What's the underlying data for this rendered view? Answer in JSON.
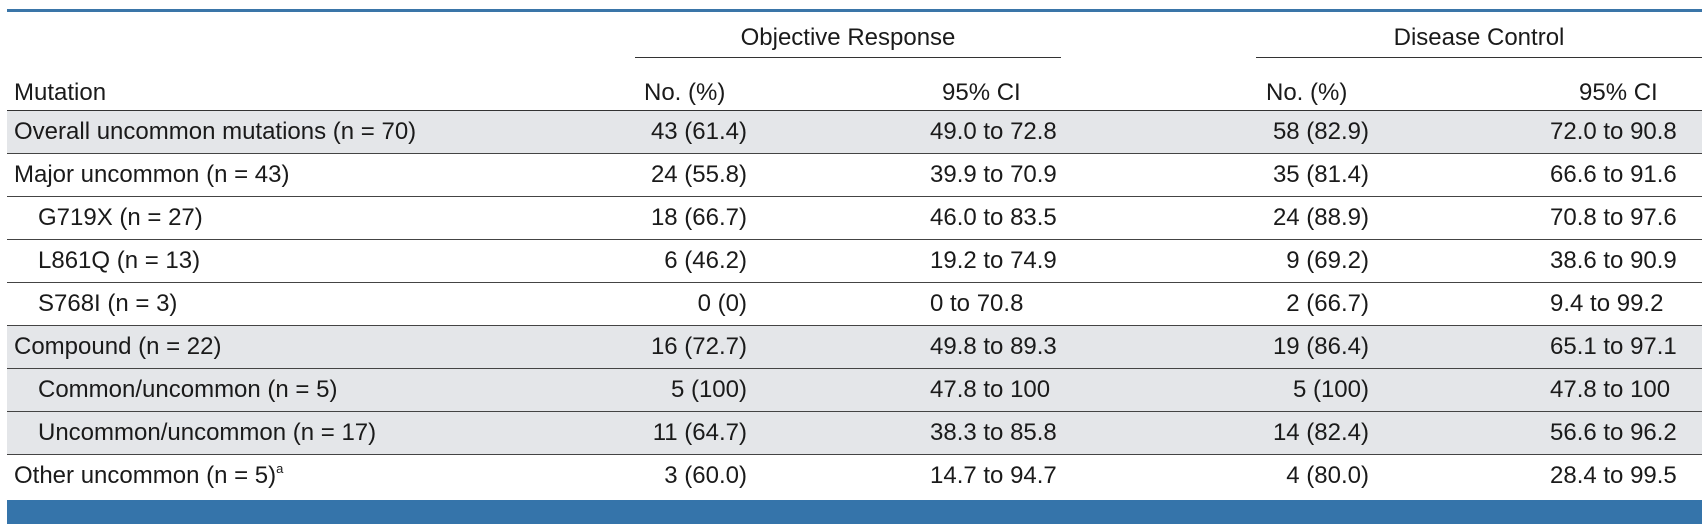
{
  "table": {
    "groups": {
      "objective_response": "Objective Response",
      "disease_control": "Disease Control"
    },
    "columns": {
      "mutation": "Mutation",
      "or_no": "No. (%)",
      "or_ci": "95% CI",
      "dc_no": "No. (%)",
      "dc_ci": "95% CI"
    },
    "rows": [
      {
        "mutation": "Overall uncommon mutations (n = 70)",
        "sup": "",
        "or_no": "43 (61.4)",
        "or_ci": "49.0 to 72.8",
        "dc_no": "58 (82.9)",
        "dc_ci": "72.0 to 90.8"
      },
      {
        "mutation": "Major uncommon (n = 43)",
        "sup": "",
        "or_no": "24 (55.8)",
        "or_ci": "39.9 to 70.9",
        "dc_no": "35 (81.4)",
        "dc_ci": "66.6 to 91.6"
      },
      {
        "mutation": "G719X (n = 27)",
        "sup": "",
        "or_no": "18 (66.7)",
        "or_ci": "46.0 to 83.5",
        "dc_no": "24 (88.9)",
        "dc_ci": "70.8 to 97.6"
      },
      {
        "mutation": "L861Q (n = 13)",
        "sup": "",
        "or_no": "6 (46.2)",
        "or_ci": "19.2 to 74.9",
        "dc_no": "9 (69.2)",
        "dc_ci": "38.6 to 90.9"
      },
      {
        "mutation": "S768I (n = 3)",
        "sup": "",
        "or_no": "0 (0)",
        "or_ci": "0 to 70.8",
        "dc_no": "2 (66.7)",
        "dc_ci": "9.4 to 99.2"
      },
      {
        "mutation": "Compound (n = 22)",
        "sup": "",
        "or_no": "16 (72.7)",
        "or_ci": "49.8 to 89.3",
        "dc_no": "19 (86.4)",
        "dc_ci": "65.1 to 97.1"
      },
      {
        "mutation": "Common/uncommon (n = 5)",
        "sup": "",
        "or_no": "5 (100)",
        "or_ci": "47.8 to 100",
        "dc_no": "5 (100)",
        "dc_ci": "47.8 to 100"
      },
      {
        "mutation": "Uncommon/uncommon (n = 17)",
        "sup": "",
        "or_no": "11 (64.7)",
        "or_ci": "38.3 to 85.8",
        "dc_no": "14 (82.4)",
        "dc_ci": "56.6 to 96.2"
      },
      {
        "mutation": "Other uncommon (n = 5)",
        "sup": "a",
        "or_no": "3 (60.0)",
        "or_ci": "14.7 to 94.7",
        "dc_no": "4 (80.0)",
        "dc_ci": "28.4 to 99.5"
      }
    ]
  },
  "colors": {
    "accent": "#3574aa",
    "shade": "#e4e6e9"
  }
}
